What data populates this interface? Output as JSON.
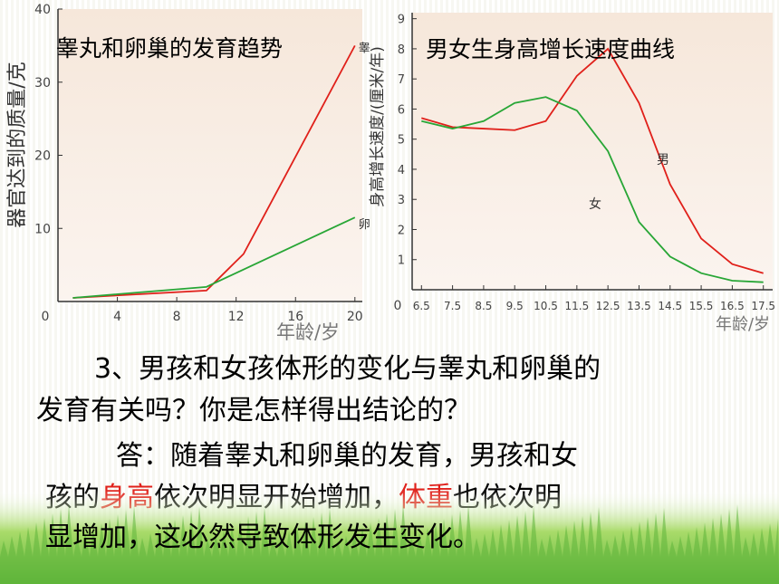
{
  "colors": {
    "male": "#e0201a",
    "female": "#28a636",
    "panel_bg": "#f6e7da",
    "highlight": "#e0201a",
    "grass_light": "#a9db6a",
    "grass_dark": "#5fb53a"
  },
  "chart_data": [
    {
      "type": "line",
      "title": "睾丸和卵巢的发育趋势",
      "xlabel": "年龄/岁",
      "ylabel": "器官达到的质量/克",
      "xlim": [
        0,
        20.5
      ],
      "ylim": [
        0,
        40
      ],
      "xticks": [
        "0",
        "4",
        "8",
        "12",
        "16",
        "20"
      ],
      "yticks": [
        "10",
        "20",
        "30",
        "40"
      ],
      "series": [
        {
          "name": "睾",
          "x": [
            1,
            10,
            12.5,
            20
          ],
          "y": [
            0.5,
            1.5,
            6.5,
            35
          ]
        },
        {
          "name": "卵",
          "x": [
            1,
            10,
            20
          ],
          "y": [
            0.5,
            2,
            11.5
          ]
        }
      ]
    },
    {
      "type": "line",
      "title": "男女生身高增长速度曲线",
      "xlabel": "年龄/岁",
      "ylabel": "身高增长速度/(厘米/年)",
      "xlim": [
        6.2,
        17.8
      ],
      "ylim": [
        0,
        9.2
      ],
      "xticks": [
        "6.5",
        "7.5",
        "8.5",
        "9.5",
        "10.5",
        "11.5",
        "12.5",
        "13.5",
        "14.5",
        "15.5",
        "16.5",
        "17.5"
      ],
      "yticks": [
        "1",
        "2",
        "3",
        "4",
        "5",
        "6",
        "7",
        "8",
        "9"
      ],
      "series": [
        {
          "name": "男",
          "x": [
            6.5,
            7.5,
            8.5,
            9.5,
            10.5,
            11.5,
            12.5,
            13.5,
            14.5,
            15.5,
            16.5,
            17.5
          ],
          "y": [
            5.7,
            5.4,
            5.35,
            5.3,
            5.6,
            7.1,
            8.0,
            6.2,
            3.5,
            1.7,
            0.85,
            0.55
          ]
        },
        {
          "name": "女",
          "x": [
            6.5,
            7.5,
            8.5,
            9.5,
            10.5,
            11.5,
            12.5,
            13.5,
            14.5,
            15.5,
            16.5,
            17.5
          ],
          "y": [
            5.6,
            5.35,
            5.6,
            6.2,
            6.4,
            5.95,
            4.6,
            2.25,
            1.1,
            0.55,
            0.3,
            0.25
          ]
        }
      ]
    }
  ],
  "question": {
    "number": "3",
    "line1": "、男孩和女孩体形的变化与睾丸和卵巢的",
    "line2": "发育有关吗？你是怎样得出结论的？"
  },
  "answer": {
    "line1": "答：随着睾丸和卵巢的发育，男孩和女",
    "line2_a": "孩的",
    "line2_b": "身高",
    "line2_c": "依次明显开始增加，",
    "line2_d": "体重",
    "line2_e": "也依次明",
    "line3": "显增加，这必然导致体形发生变化。"
  }
}
